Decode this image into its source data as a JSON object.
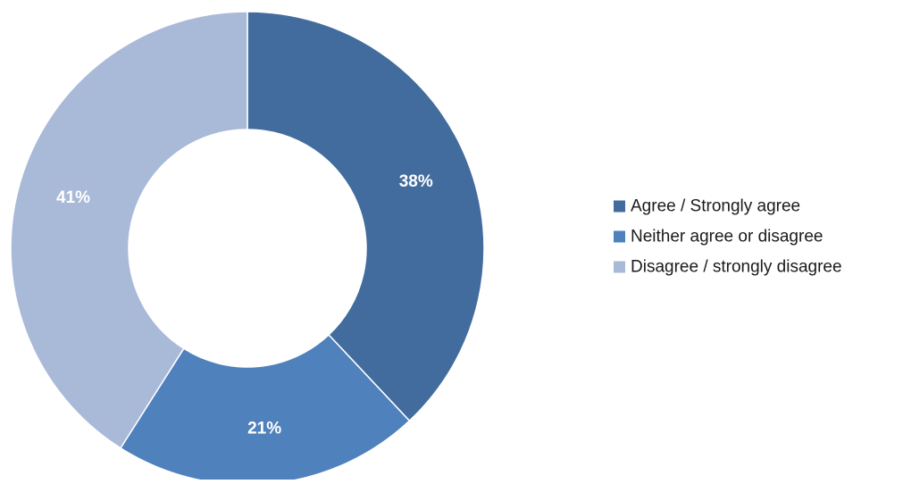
{
  "chart_data": {
    "type": "pie",
    "donut": true,
    "slices": [
      {
        "name": "Agree / Strongly agree",
        "value": 38,
        "label": "38%",
        "color": "#426C9D"
      },
      {
        "name": "Neither agree or disagree",
        "value": 21,
        "label": "21%",
        "color": "#4F81BD"
      },
      {
        "name": "Disagree / strongly disagree",
        "value": 41,
        "label": "41%",
        "color": "#A9B9D8"
      }
    ],
    "start_angle": "12 o'clock",
    "direction": "clockwise",
    "legend_position": "right"
  }
}
